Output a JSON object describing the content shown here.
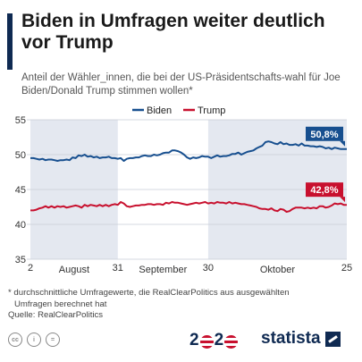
{
  "header": {
    "title": "Biden in Umfragen weiter deutlich vor Trump",
    "subtitle": "Anteil der Wähler_innen, die bei der US-Präsidentschafts-wahl für Joe Biden/Donald Trump stimmen wollen*"
  },
  "chart_data": {
    "type": "line",
    "x_tick_labels": [
      "2",
      "31",
      "30",
      "25"
    ],
    "month_labels": [
      "August",
      "September",
      "Oktober"
    ],
    "ylim": [
      35,
      55
    ],
    "y_ticks": [
      35,
      40,
      45,
      50,
      55
    ],
    "grid": true,
    "legend_position": "top",
    "shaded_periods": [
      "August",
      "Oktober"
    ],
    "series": [
      {
        "name": "Biden",
        "color": "#174f8f",
        "end_label": "50,8%",
        "values": [
          49.5,
          49.5,
          49.4,
          49.3,
          49.4,
          49.2,
          49.3,
          49.3,
          49.2,
          49.1,
          49.2,
          49.2,
          49.3,
          49.2,
          49.6,
          49.5,
          49.9,
          49.8,
          50.0,
          49.7,
          49.8,
          49.6,
          49.7,
          49.5,
          49.6,
          49.6,
          49.7,
          49.5,
          49.5,
          49.4,
          49.5,
          49.1,
          49.4,
          49.5,
          49.5,
          49.6,
          49.6,
          49.8,
          49.9,
          49.8,
          49.8,
          50.0,
          49.9,
          50.0,
          50.2,
          50.3,
          50.3,
          50.6,
          50.6,
          50.5,
          50.3,
          50.0,
          49.6,
          49.4,
          49.6,
          49.5,
          49.6,
          49.8,
          49.7,
          49.7,
          49.5,
          49.7,
          49.9,
          49.7,
          49.8,
          49.8,
          49.9,
          50.1,
          50.1,
          50.3,
          50.0,
          50.2,
          50.4,
          50.5,
          50.6,
          50.9,
          51.1,
          51.3,
          51.8,
          51.9,
          51.8,
          51.6,
          51.5,
          51.8,
          51.5,
          51.6,
          51.4,
          51.4,
          51.5,
          51.3,
          51.6,
          51.3,
          51.3,
          51.2,
          51.2,
          51.1,
          51.2,
          51.1,
          50.9,
          51.0,
          50.8,
          51.0,
          50.9,
          50.8,
          50.8,
          50.8
        ]
      },
      {
        "name": "Trump",
        "color": "#c8102e",
        "end_label": "42,8%",
        "values": [
          42.0,
          42.0,
          42.1,
          42.3,
          42.4,
          42.6,
          42.4,
          42.6,
          42.4,
          42.6,
          42.5,
          42.6,
          42.4,
          42.5,
          42.6,
          42.7,
          42.6,
          42.4,
          42.8,
          42.6,
          42.8,
          42.7,
          42.6,
          42.8,
          42.6,
          42.8,
          42.6,
          42.8,
          42.9,
          42.8,
          43.2,
          43.0,
          42.6,
          42.5,
          42.6,
          42.7,
          42.7,
          42.8,
          42.8,
          42.9,
          42.9,
          42.8,
          42.9,
          42.9,
          42.8,
          43.1,
          43.0,
          43.2,
          43.1,
          43.1,
          43.0,
          42.9,
          42.8,
          42.9,
          43.0,
          43.1,
          43.0,
          43.1,
          43.2,
          43.0,
          43.1,
          43.0,
          43.2,
          43.1,
          43.1,
          43.0,
          43.2,
          43.0,
          43.1,
          43.0,
          42.9,
          42.9,
          42.8,
          42.7,
          42.6,
          42.5,
          42.3,
          42.2,
          42.2,
          42.1,
          42.3,
          42.0,
          41.9,
          42.2,
          42.1,
          41.8,
          41.9,
          42.2,
          42.4,
          42.4,
          42.4,
          42.3,
          42.4,
          42.3,
          42.4,
          42.3,
          42.6,
          42.6,
          42.4,
          42.5,
          42.7,
          43.0,
          42.9,
          43.0,
          42.8,
          42.8
        ]
      }
    ]
  },
  "footnote": {
    "line1": "* durchschnittliche Umfragewerte, die RealClearPolitics aus ausgewählten",
    "line2": "Umfragen berechnet hat",
    "source": "Quelle: RealClearPolitics"
  },
  "footer": {
    "cc_icons": [
      "cc",
      "i",
      "="
    ],
    "badge_left": "2",
    "badge_mid": "2",
    "badge_zero": "0",
    "brand": "statista"
  }
}
